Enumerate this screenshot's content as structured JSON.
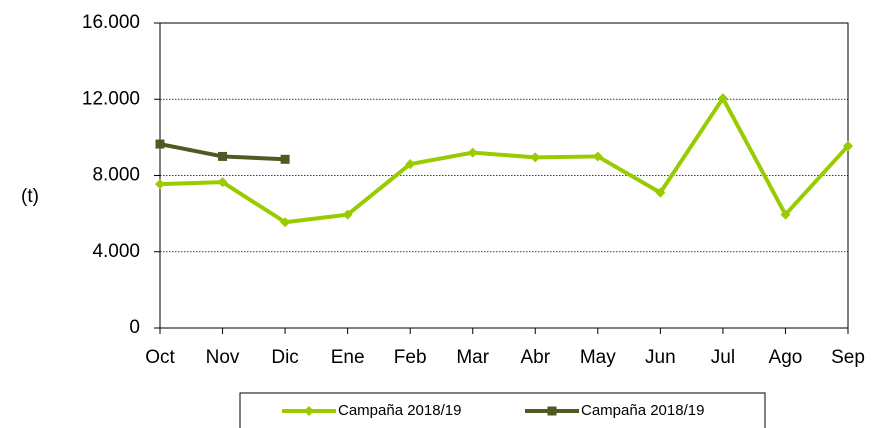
{
  "chart_data": {
    "type": "line",
    "y_label": "(t)",
    "categories": [
      "Oct",
      "Nov",
      "Dic",
      "Ene",
      "Feb",
      "Mar",
      "Abr",
      "May",
      "Jun",
      "Jul",
      "Ago",
      "Sep"
    ],
    "series": [
      {
        "name": "Campaña 2018/19",
        "color": "#99cc00",
        "marker": "diamond",
        "values": [
          7550,
          7650,
          5550,
          5950,
          8600,
          9200,
          8950,
          9000,
          7100,
          12050,
          5950,
          9550
        ]
      },
      {
        "name": "Campaña 2018/19",
        "color": "#4d5a22",
        "marker": "square",
        "values": [
          9650,
          9000,
          8850,
          null,
          null,
          null,
          null,
          null,
          null,
          null,
          null,
          null
        ]
      }
    ],
    "ylim": [
      0,
      16000
    ],
    "yticks": [
      0,
      {
        "value": 4000,
        "label": "4.000"
      },
      {
        "value": 8000,
        "label": "8.000"
      },
      {
        "value": 12000,
        "label": "12.000"
      },
      {
        "value": 16000,
        "label": "16.000"
      }
    ],
    "grid": true,
    "legend": "bottom"
  }
}
